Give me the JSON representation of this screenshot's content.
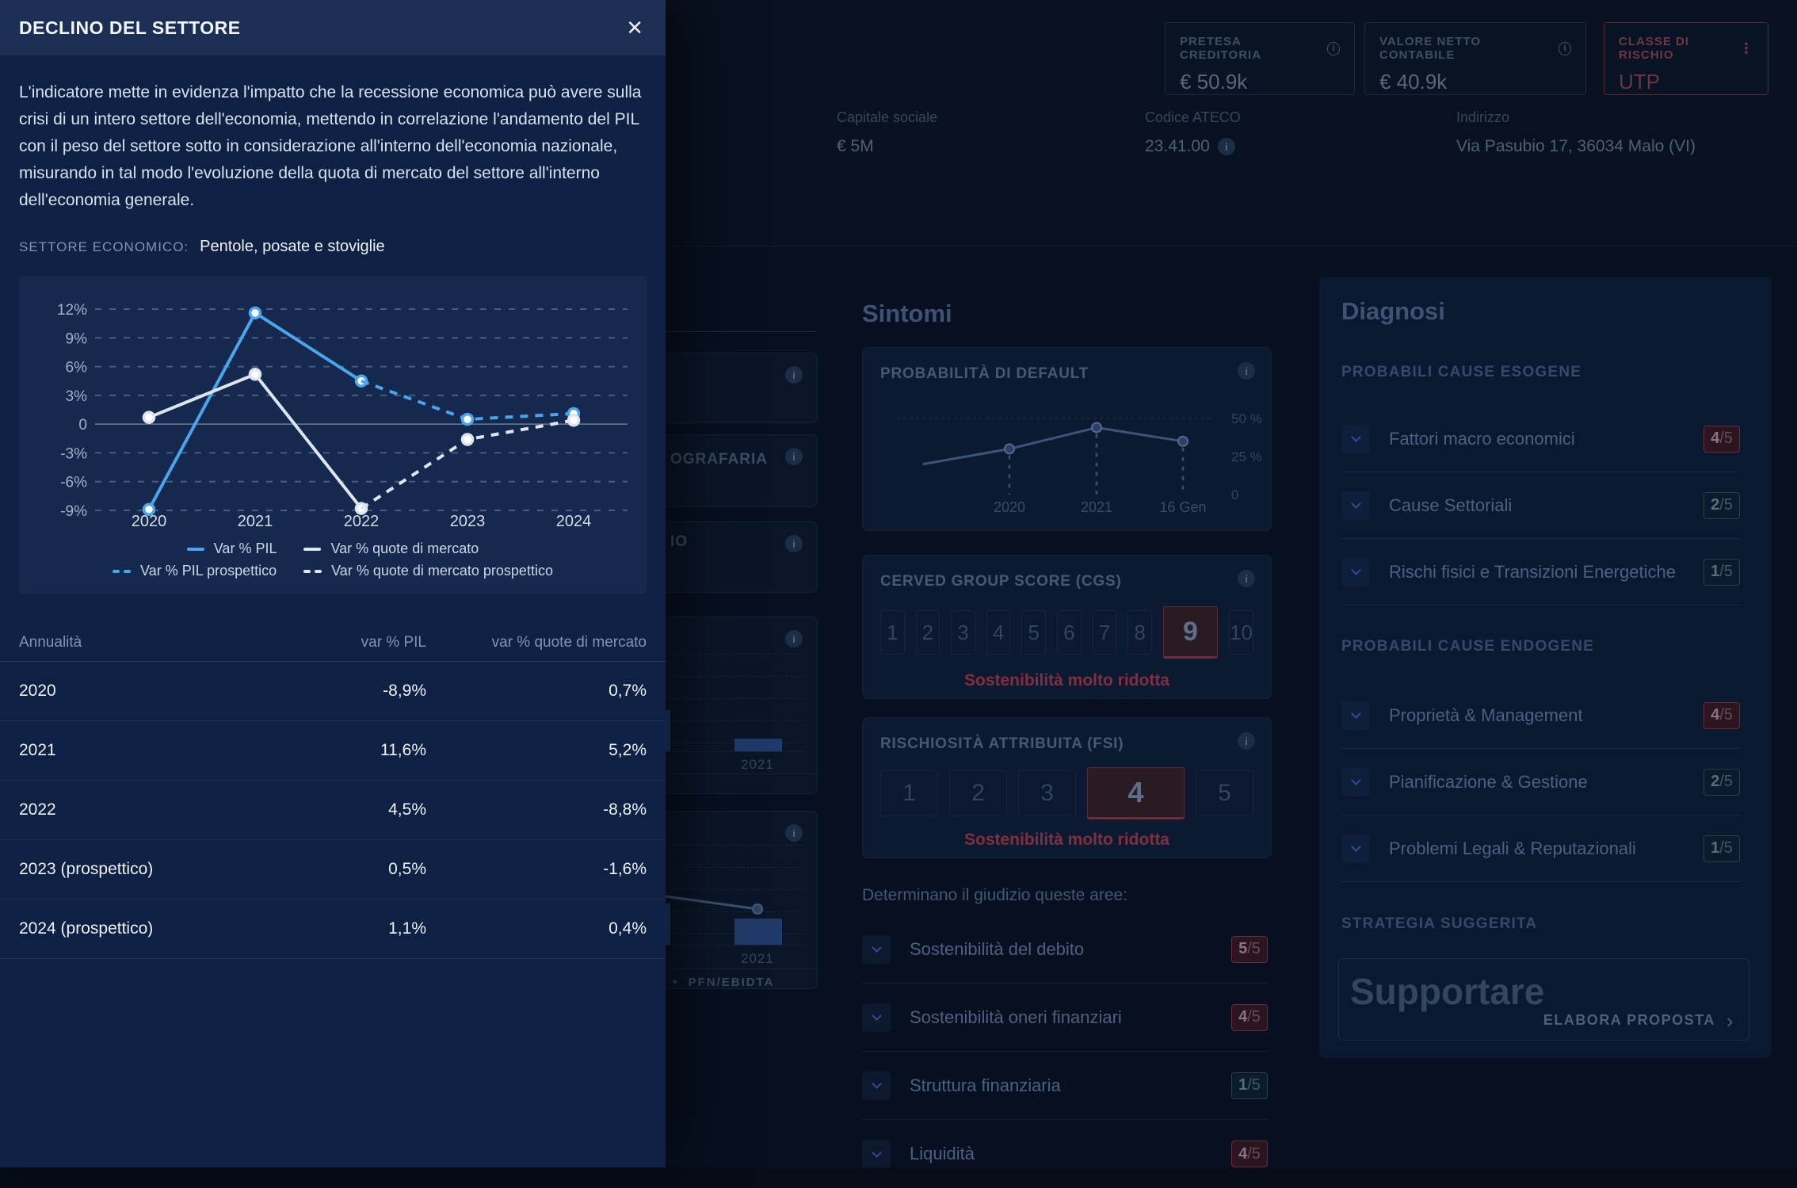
{
  "modal": {
    "title": "DECLINO DEL SETTORE",
    "close_label": "✕",
    "description": "L'indicatore mette in evidenza l'impatto che la recessione economica può avere sulla crisi di un intero settore dell'economia, mettendo in correlazione l'andamento del PIL con il peso del settore sotto in considerazione all'interno dell'economia nazionale, misurando in tal modo l'evoluzione della quota di mercato del settore all'interno dell'economia generale.",
    "sector": {
      "label": "SETTORE ECONOMICO:",
      "value": "Pentole, posate e stoviglie"
    },
    "table": {
      "headers": [
        "Annualità",
        "var % PIL",
        "var % quote di mercato"
      ],
      "rows": [
        [
          "2020",
          "-8,9%",
          "0,7%"
        ],
        [
          "2021",
          "11,6%",
          "5,2%"
        ],
        [
          "2022",
          "4,5%",
          "-8,8%"
        ],
        [
          "2023 (prospettico)",
          "0,5%",
          "-1,6%"
        ],
        [
          "2024 (prospettico)",
          "1,1%",
          "0,4%"
        ]
      ]
    }
  },
  "chart_data": [
    {
      "type": "line",
      "title": "Declino del settore",
      "x": [
        "2020",
        "2021",
        "2022",
        "2023",
        "2024"
      ],
      "series": [
        {
          "name": "Var % PIL",
          "color": "#4aa5ec",
          "dash": false,
          "values": [
            -8.9,
            11.6,
            4.5,
            null,
            null
          ]
        },
        {
          "name": "Var % quote di mercato",
          "color": "#dde5f0",
          "dash": false,
          "values": [
            0.7,
            5.2,
            -8.8,
            null,
            null
          ]
        },
        {
          "name": "Var % PIL prospettico",
          "color": "#4aa5ec",
          "dash": true,
          "values": [
            null,
            null,
            4.5,
            0.5,
            1.1
          ]
        },
        {
          "name": "Var % quote di mercato prospettico",
          "color": "#dde5f0",
          "dash": true,
          "values": [
            null,
            null,
            -8.8,
            -1.6,
            0.4
          ]
        }
      ],
      "yticks": [
        12,
        9,
        6,
        3,
        0,
        -3,
        -6,
        -9
      ],
      "ylim": [
        -10.9,
        14.3
      ],
      "grid": "dashed-horizontal",
      "legend_position": "bottom"
    },
    {
      "type": "line",
      "title": "PROBABILITÀ DI DEFAULT",
      "x": [
        "",
        "2020",
        "2021",
        "16 Gen"
      ],
      "values": [
        20,
        30,
        44,
        35
      ],
      "yticks": [
        {
          "label": "50 %",
          "v": 50
        },
        {
          "label": "25 %",
          "v": 25
        },
        {
          "label": "0",
          "v": 0
        }
      ],
      "ylim": [
        0,
        60
      ],
      "legend_position": "none"
    },
    {
      "type": "bar",
      "categories": [
        "2021"
      ],
      "values": [
        0.1
      ],
      "title": ""
    },
    {
      "type": "bar",
      "categories": [
        "2021"
      ],
      "values": [
        0.4
      ],
      "legend": [
        "PFN/EBIDTA"
      ],
      "title": ""
    }
  ],
  "page": {
    "header": {
      "stats": [
        {
          "label": "PRETESA CREDITORIA",
          "value": "€ 50.9k"
        },
        {
          "label": "VALORE NETTO CONTABILE",
          "value": "€ 40.9k"
        },
        {
          "label": "CLASSE DI RISCHIO",
          "value": "UTP",
          "kebab": "⋮"
        }
      ],
      "info": [
        {
          "label": "Capitale sociale",
          "value": "€ 5M"
        },
        {
          "label": "Codice ATECO",
          "value": "23.41.00"
        },
        {
          "label": "Indirizzo",
          "value": "Via Pasubio 17, 36034 Malo (VI)"
        }
      ]
    },
    "mid_cards": {
      "fragment_b": "OGRAFARIA",
      "fragment_c": "IO",
      "bar_year": "2021",
      "legend_e": "PFN/EBIDTA"
    },
    "sintomi": {
      "title": "Sintomi",
      "default_card": {
        "title": "PROBABILITÀ DI DEFAULT"
      },
      "cgs": {
        "title": "CERVED GROUP SCORE (CGS)",
        "scale": [
          "1",
          "2",
          "3",
          "4",
          "5",
          "6",
          "7",
          "8",
          "9",
          "10"
        ],
        "selected": "9",
        "caption": "Sostenibilità molto ridotta"
      },
      "fsi": {
        "title": "RISCHIOSITÀ ATTRIBUITA (FSI)",
        "scale": [
          "1",
          "2",
          "3",
          "4",
          "5"
        ],
        "selected": "4",
        "caption": "Sostenibilità molto ridotta"
      },
      "aree": {
        "label": "Determinano il giudizio queste aree:",
        "items": [
          {
            "label": "Sostenibilità del debito",
            "score": "5",
            "max": "5",
            "variant": "red"
          },
          {
            "label": "Sostenibilità oneri finanziari",
            "score": "4",
            "max": "5",
            "variant": "red"
          },
          {
            "label": "Struttura finanziaria",
            "score": "1",
            "max": "5",
            "variant": "neutral"
          },
          {
            "label": "Liquidità",
            "score": "4",
            "max": "5",
            "variant": "red"
          }
        ]
      }
    },
    "diagnosi": {
      "title": "Diagnosi",
      "sections": [
        {
          "label": "PROBABILI CAUSE ESOGENE",
          "items": [
            {
              "label": "Fattori macro economici",
              "score": "4",
              "max": "5",
              "variant": "red"
            },
            {
              "label": "Cause Settoriali",
              "score": "2",
              "max": "5",
              "variant": "neutral"
            },
            {
              "label": "Rischi fisici e Transizioni Energetiche",
              "score": "1",
              "max": "5",
              "variant": "neutral"
            }
          ]
        },
        {
          "label": "PROBABILI CAUSE ENDOGENE",
          "items": [
            {
              "label": "Proprietà & Management",
              "score": "4",
              "max": "5",
              "variant": "red"
            },
            {
              "label": "Pianificazione & Gestione",
              "score": "2",
              "max": "5",
              "variant": "neutral"
            },
            {
              "label": "Problemi Legali & Reputazionali",
              "score": "1",
              "max": "5",
              "variant": "neutral"
            }
          ]
        }
      ],
      "strategy": {
        "label": "STRATEGIA SUGGERITA",
        "value": "Supportare",
        "cta": "ELABORA PROPOSTA",
        "cta_icon": "›"
      }
    }
  },
  "colors": {
    "accent_blue": "#4aa5ec",
    "line_white": "#dde5f0",
    "risk_red": "#832e3e"
  }
}
